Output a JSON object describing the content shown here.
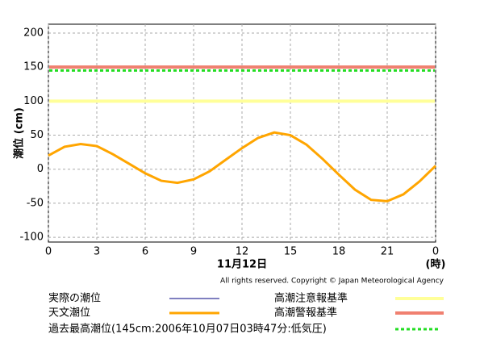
{
  "chart_data": {
    "type": "line",
    "y_label": "潮位 (cm)",
    "x_label": "11月12日",
    "x_unit": "(時)",
    "copyright": "All rights reserved. Copyright © Japan Meteorological Agency",
    "x": [
      0,
      1,
      2,
      3,
      4,
      5,
      6,
      7,
      8,
      9,
      10,
      11,
      12,
      13,
      14,
      15,
      16,
      17,
      18,
      19,
      20,
      21,
      22,
      23,
      24
    ],
    "series": [
      {
        "name": "実際の潮位",
        "color": "#000080",
        "values": [
          null,
          null,
          null,
          null,
          null,
          null,
          null,
          null,
          null,
          null,
          null,
          null,
          null,
          null,
          null,
          null,
          null,
          null,
          null,
          null,
          null,
          null,
          null,
          null,
          null
        ]
      },
      {
        "name": "天文潮位",
        "color": "#ffa500",
        "values": [
          20,
          33,
          37,
          34,
          22,
          8,
          -6,
          -17,
          -20,
          -15,
          -3,
          14,
          31,
          46,
          54,
          50,
          36,
          15,
          -8,
          -30,
          -45,
          -47,
          -37,
          -18,
          5
        ]
      }
    ],
    "reference_lines": [
      {
        "name": "高潮注意報基準",
        "value": 100,
        "color": "#ffff99",
        "style": "solid"
      },
      {
        "name": "高潮警報基準",
        "value": 150,
        "color": "#f08070",
        "style": "solid"
      },
      {
        "name": "過去最高潮位(145cm:2006年10月07日03時47分:低気圧)",
        "value": 145,
        "color": "#22dd22",
        "style": "dashed"
      }
    ],
    "xlim": [
      0,
      24
    ],
    "xticks": [
      0,
      3,
      6,
      9,
      12,
      15,
      18,
      21,
      {
        "value": 24,
        "label": "0"
      }
    ],
    "ylim": [
      -107,
      213
    ],
    "yticks": [
      -100,
      -50,
      0,
      50,
      100,
      150,
      200
    ],
    "grid": true
  }
}
